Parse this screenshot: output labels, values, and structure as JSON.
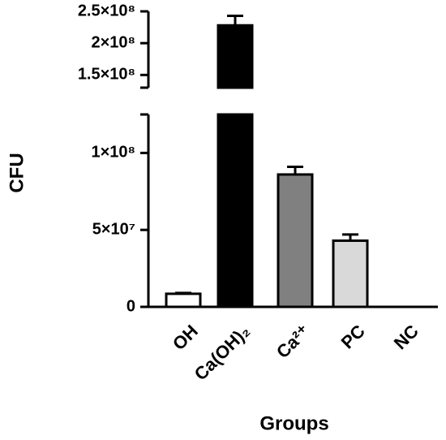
{
  "chart_data": {
    "type": "bar",
    "ylabel": "CFU",
    "xlabel": "Groups",
    "categories": [
      "OH",
      "Ca(OH)₂",
      "Ca²⁺",
      "PC",
      "NC"
    ],
    "values": [
      8500000,
      228000000,
      86000000,
      43000000,
      0
    ],
    "errors": [
      500000,
      15000000,
      5000000,
      4000000,
      0
    ],
    "colors": [
      "#ffffff",
      "#000000",
      "#808080",
      "#d9d9d9",
      "#ffffff"
    ],
    "segments": [
      {
        "ylim": [
          0,
          125000000
        ],
        "yticks": [
          0,
          {
            "value": 50000000,
            "label": "5×10⁷"
          },
          {
            "value": 100000000,
            "label": "1×10⁸"
          }
        ]
      },
      {
        "ylim": [
          130000000,
          250000000
        ],
        "yticks": [
          {
            "value": 150000000,
            "label": "1.5×10⁸"
          },
          {
            "value": 200000000,
            "label": "2×10⁸"
          },
          {
            "value": 250000000,
            "label": "2.5×10⁸"
          }
        ]
      }
    ]
  }
}
